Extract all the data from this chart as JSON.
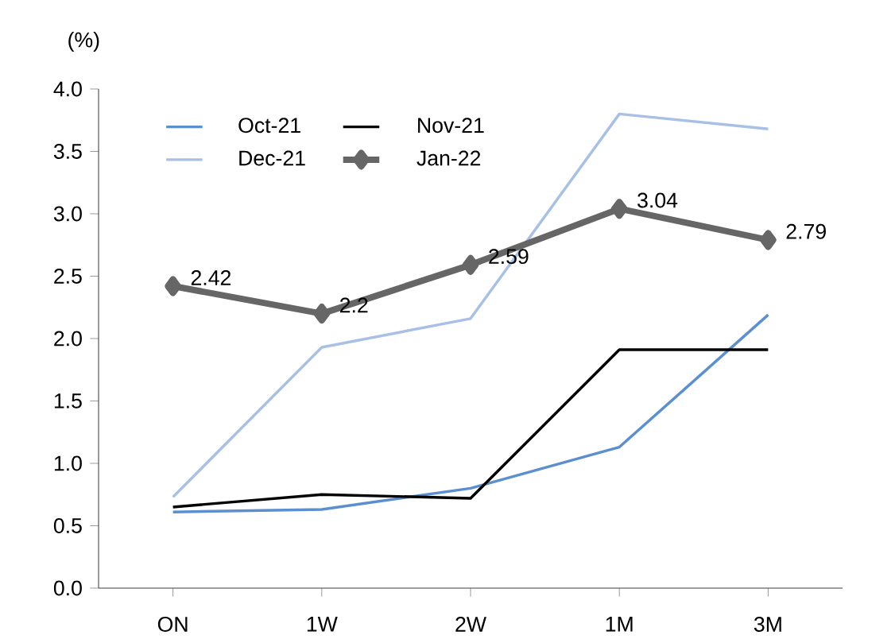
{
  "chart_data": {
    "type": "line",
    "ylabel": "(%)",
    "categories": [
      "ON",
      "1W",
      "2W",
      "1M",
      "3M"
    ],
    "series": [
      {
        "name": "Oct-21",
        "color": "#5b8fd0",
        "values": [
          0.61,
          0.63,
          0.8,
          1.13,
          2.19
        ]
      },
      {
        "name": "Nov-21",
        "color": "#000000",
        "values": [
          0.65,
          0.75,
          0.72,
          1.91,
          1.91
        ]
      },
      {
        "name": "Dec-21",
        "color": "#a9c0e6",
        "values": [
          0.73,
          1.93,
          2.16,
          3.8,
          3.68
        ]
      },
      {
        "name": "Jan-22",
        "color": "#666666",
        "marker": "diamond",
        "values": [
          2.42,
          2.2,
          2.59,
          3.04,
          2.79
        ],
        "value_labels": [
          "2.42",
          "2.2",
          "2.59",
          "3.04",
          "2.79"
        ]
      }
    ],
    "ylim": [
      0,
      4
    ],
    "yticks": [
      {
        "value": 0,
        "label": "0.0"
      },
      {
        "value": 0.5,
        "label": "0.5"
      },
      {
        "value": 1,
        "label": "1.0"
      },
      {
        "value": 1.5,
        "label": "1.5"
      },
      {
        "value": 2,
        "label": "2.0"
      },
      {
        "value": 2.5,
        "label": "2.5"
      },
      {
        "value": 3,
        "label": "3.0"
      },
      {
        "value": 3.5,
        "label": "3.5"
      },
      {
        "value": 4,
        "label": "4.0"
      }
    ],
    "legend": "top left",
    "grid": false
  }
}
